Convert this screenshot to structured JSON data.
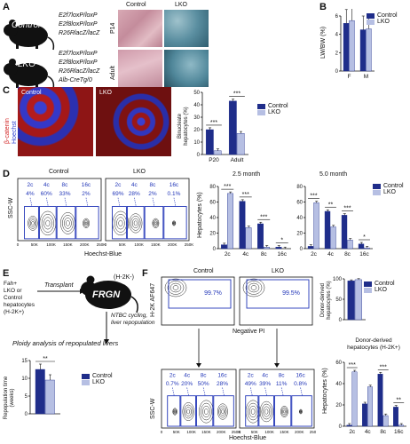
{
  "colors": {
    "control": "#1f2d8a",
    "lko": "#b6bfe3",
    "flow_blue": "#2236b8"
  },
  "panel_a": {
    "label": "A",
    "control_name": "Control",
    "lko_name": "LKO",
    "control_genotype": [
      "E2f7loxP/loxP",
      "E2f8loxP/loxP",
      "R26RlacZ/lacZ"
    ],
    "lko_genotype": [
      "E2f7loxP/loxP",
      "E2f8loxP/loxP",
      "R26RlacZ/lacZ",
      "Alb-CreTg/0"
    ],
    "img_col_control": "Control",
    "img_col_lko": "LKO",
    "img_row_p14": "P14",
    "img_row_adult": "Adult"
  },
  "panel_b": {
    "label": "B",
    "ylabel": "LW/BW (%)",
    "legend": [
      "Control",
      "LKO"
    ]
  },
  "panel_c": {
    "label": "C",
    "img_control": "Control",
    "img_lko": "LKO",
    "stain_beta": "β-catenin",
    "stain_hoechst": "Hoechst",
    "ylabel": "Binucleate hepatocytes (%)",
    "legend": [
      "Control",
      "LKO"
    ]
  },
  "panel_d": {
    "label": "D",
    "flow_control_title": "Control",
    "flow_lko_title": "LKO",
    "flow_ylabel": "SSC-W",
    "flow_xlabel": "Hoechst-Blue",
    "flow_ticks": [
      "0",
      "50K",
      "100K",
      "150K",
      "200K",
      "250K"
    ],
    "control_gates": [
      {
        "name": "2c",
        "pct": "4%"
      },
      {
        "name": "4c",
        "pct": "60%"
      },
      {
        "name": "8c",
        "pct": "33%"
      },
      {
        "name": "16c",
        "pct": "2%"
      }
    ],
    "lko_gates": [
      {
        "name": "2c",
        "pct": "69%"
      },
      {
        "name": "4c",
        "pct": "28%"
      },
      {
        "name": "8c",
        "pct": "2%"
      },
      {
        "name": "16c",
        "pct": "0.1%"
      }
    ],
    "bar_title_1": "2.5 month",
    "bar_title_2": "5.0 month",
    "bar_ylabel": "Hepatocytes (%)",
    "legend": [
      "Control",
      "LKO"
    ]
  },
  "panel_e": {
    "label": "E",
    "donor_text": [
      "Fah+",
      "LKO or",
      "Control",
      "hepatocytes",
      "(H-2K+)"
    ],
    "transplant": "Transplant",
    "frgn": "FRGN",
    "recipient": "(H-2K-)",
    "cycling": [
      "NTBC cycling,",
      "liver repopulation"
    ],
    "ploidy": "Ploidy analysis of repopulated livers",
    "ylabel": "Repopulation time (weeks)",
    "legend": [
      "Control",
      "LKO"
    ]
  },
  "panel_f": {
    "label": "F",
    "flow_control_title": "Control",
    "flow_lko_title": "LKO",
    "top_ylabel": "H-2K AF647",
    "top_xlabel": "Negative PI",
    "top_control_pct": "99.7%",
    "top_lko_pct": "99.5%",
    "flow_ylabel": "SSC-W",
    "flow_xlabel": "Hoechst-Blue",
    "flow_ticks": [
      "0",
      "50K",
      "100K",
      "150K",
      "200K",
      "250K"
    ],
    "control_gates": [
      {
        "name": "2c",
        "pct": "0.7%"
      },
      {
        "name": "4c",
        "pct": "20%"
      },
      {
        "name": "8c",
        "pct": "50%"
      },
      {
        "name": "16c",
        "pct": "28%"
      }
    ],
    "lko_gates": [
      {
        "name": "2c",
        "pct": "49%"
      },
      {
        "name": "4c",
        "pct": "39%"
      },
      {
        "name": "8c",
        "pct": "11%"
      },
      {
        "name": "16c",
        "pct": "0.8%"
      }
    ],
    "top_bar_ylabel": "Donor-derived hepatocytes (%)",
    "bottom_bar_title": "Donor-derived hepatocytes (H-2K+)",
    "bottom_bar_ylabel": "Hepatocytes (%)",
    "legend": [
      "Control",
      "LKO"
    ]
  },
  "chart_data": [
    {
      "id": "B",
      "type": "bar",
      "categories": [
        "F",
        "M"
      ],
      "series": [
        {
          "name": "Control",
          "values": [
            5.2,
            4.5
          ]
        },
        {
          "name": "LKO",
          "values": [
            5.5,
            4.6
          ]
        }
      ],
      "ylabel": "LW/BW (%)",
      "ylim": [
        0,
        6
      ],
      "yticks": [
        "0",
        "2",
        "4",
        "6"
      ]
    },
    {
      "id": "C",
      "type": "bar",
      "categories": [
        "P20",
        "Adult"
      ],
      "series": [
        {
          "name": "Control",
          "values": [
            20,
            43
          ]
        },
        {
          "name": "LKO",
          "values": [
            3,
            17
          ]
        }
      ],
      "ylabel": "Binucleate hepatocytes (%)",
      "ylim": [
        0,
        50
      ],
      "yticks": [
        "0",
        "10",
        "20",
        "30",
        "40",
        "50"
      ],
      "annotations": [
        "***",
        "***"
      ]
    },
    {
      "id": "D1",
      "type": "bar",
      "title": "2.5 month",
      "categories": [
        "2c",
        "4c",
        "8c",
        "16c"
      ],
      "series": [
        {
          "name": "Control",
          "values": [
            5,
            61,
            32,
            2
          ]
        },
        {
          "name": "LKO",
          "values": [
            71,
            27,
            2,
            0
          ]
        }
      ],
      "ylabel": "Hepatocytes (%)",
      "ylim": [
        0,
        80
      ],
      "yticks": [
        "0",
        "20",
        "40",
        "60",
        "80"
      ],
      "annotations": [
        "***",
        "***",
        "***",
        "*"
      ]
    },
    {
      "id": "D2",
      "type": "bar",
      "title": "5.0 month",
      "categories": [
        "2c",
        "4c",
        "8c",
        "16c"
      ],
      "series": [
        {
          "name": "Control",
          "values": [
            3,
            48,
            43,
            6
          ]
        },
        {
          "name": "LKO",
          "values": [
            59,
            28,
            11,
            1
          ]
        }
      ],
      "ylabel": "",
      "ylim": [
        0,
        80
      ],
      "yticks": [
        "0",
        "20",
        "40",
        "60",
        "80"
      ],
      "annotations": [
        "***",
        "**",
        "***",
        "*"
      ]
    },
    {
      "id": "E",
      "type": "bar",
      "categories": [
        ""
      ],
      "series": [
        {
          "name": "Control",
          "values": [
            12.5
          ]
        },
        {
          "name": "LKO",
          "values": [
            9.5
          ]
        }
      ],
      "ylabel": "Repopulation time (weeks)",
      "ylim": [
        0,
        15
      ],
      "yticks": [
        "0",
        "5",
        "10",
        "15"
      ],
      "annotations": [
        "**"
      ]
    },
    {
      "id": "F1",
      "type": "bar",
      "categories": [
        ""
      ],
      "series": [
        {
          "name": "Control",
          "values": [
            95
          ]
        },
        {
          "name": "LKO",
          "values": [
            98
          ]
        }
      ],
      "ylabel": "Donor-derived hepatocytes (%)",
      "ylim": [
        0,
        100
      ],
      "yticks": [
        "0",
        "50",
        "100"
      ]
    },
    {
      "id": "F2",
      "type": "bar",
      "title": "Donor-derived hepatocytes (H-2K+)",
      "categories": [
        "2c",
        "4c",
        "8c",
        "16c"
      ],
      "series": [
        {
          "name": "Control",
          "values": [
            1,
            21,
            49,
            18
          ]
        },
        {
          "name": "LKO",
          "values": [
            51,
            37,
            10,
            1
          ]
        }
      ],
      "ylabel": "Hepatocytes (%)",
      "ylim": [
        0,
        60
      ],
      "yticks": [
        "0",
        "20",
        "40",
        "60"
      ],
      "annotations": [
        "***",
        "",
        "***",
        "**"
      ]
    }
  ]
}
